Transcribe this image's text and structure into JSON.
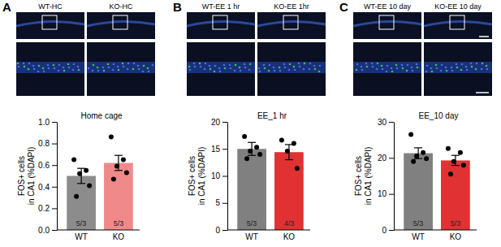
{
  "chart_data": [
    {
      "type": "bar",
      "panel": "A",
      "image_labels": [
        "WT-HC",
        "KO-HC"
      ],
      "title": "Home cage",
      "ylabel": [
        "FOS+ cells",
        "in CA1 (%DAPI)"
      ],
      "categories": [
        "WT",
        "KO"
      ],
      "values": [
        0.5,
        0.62
      ],
      "errors": [
        0.07,
        0.07
      ],
      "points": [
        [
          0.65,
          0.55,
          0.52,
          0.41,
          0.31
        ],
        [
          0.86,
          0.65,
          0.59,
          0.53,
          0.47
        ]
      ],
      "n_labels": [
        "5/3",
        "5/3"
      ],
      "colors": [
        "#8c8c8c",
        "#f08a8a"
      ],
      "ylim": [
        0,
        1.0
      ],
      "yticks": [
        {
          "value": 0,
          "label": "0.0"
        },
        0.2,
        0.4,
        0.6,
        0.8,
        {
          "value": 1.0,
          "label": "1.0"
        }
      ]
    },
    {
      "type": "bar",
      "panel": "B",
      "image_labels": [
        "WT-EE 1 hr",
        "KO-EE 1hr"
      ],
      "title": "EE_1 hr",
      "ylabel": [
        "FOS+ cells",
        "in CA1 (%DAPI)"
      ],
      "categories": [
        "WT",
        "KO"
      ],
      "values": [
        15.0,
        14.4
      ],
      "errors": [
        1.2,
        1.4
      ],
      "points": [
        [
          17.3,
          15.3,
          14.6,
          14.0,
          13.2
        ],
        [
          16.6,
          16.0,
          14.6,
          11.4
        ]
      ],
      "n_labels": [
        "5/3",
        "4/3"
      ],
      "colors": [
        "#808080",
        "#e03232"
      ],
      "ylim": [
        0,
        20
      ],
      "yticks": [
        0,
        5,
        10,
        15,
        20
      ]
    },
    {
      "type": "bar",
      "panel": "C",
      "image_labels": [
        "WT-EE 10 day",
        "KO-EE 10 day"
      ],
      "title": "EE_10 day",
      "ylabel": [
        "FOS+ cells",
        "in CA1 (%DAPI)"
      ],
      "categories": [
        "WT",
        "KO"
      ],
      "values": [
        21.3,
        19.3
      ],
      "errors": [
        1.5,
        1.4
      ],
      "points": [
        [
          26.5,
          21.5,
          20.5,
          19.8,
          19.0
        ],
        [
          22.6,
          21.5,
          19.0,
          18.0,
          15.5
        ]
      ],
      "n_labels": [
        "5/3",
        "5/3"
      ],
      "colors": [
        "#808080",
        "#e03232"
      ],
      "ylim": [
        0,
        30
      ],
      "yticks": [
        0,
        10,
        20,
        30
      ]
    }
  ]
}
